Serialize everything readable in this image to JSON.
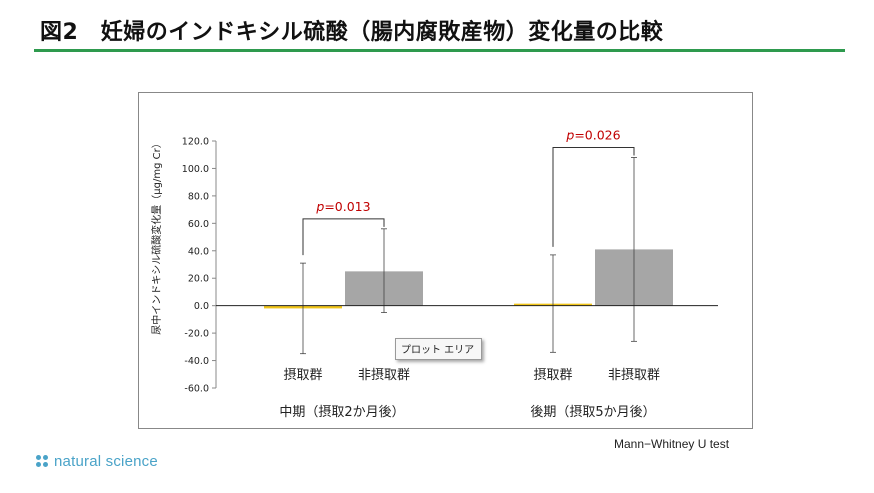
{
  "page": {
    "title": "図2　妊婦のインドキシル硫酸（腸内腐敗産物）変化量の比較",
    "footnote": "Mann−Whitney U test",
    "brand": "natural science",
    "tooltip": "プロット エリア",
    "colors": {
      "title_rule": "#2e9a4e",
      "brand": "#4aa3c8"
    }
  },
  "chart_data": {
    "type": "bar",
    "ylabel": "尿中インドキシル硫酸変化量（μg/mg Cr）",
    "ylim": [
      -60,
      120
    ],
    "yticks": [
      "120.0",
      "100.0",
      "80.0",
      "60.0",
      "40.0",
      "20.0",
      "0.0",
      "-20.0",
      "-40.0",
      "-60.0"
    ],
    "ytick_values": [
      120,
      100,
      80,
      60,
      40,
      20,
      0,
      -20,
      -40,
      -60
    ],
    "groups": [
      {
        "label": "中期（摂取2か月後）",
        "bars": [
          {
            "label": "摂取群",
            "value": -2,
            "error_low": -35,
            "error_high": 31,
            "color": "#f0c419"
          },
          {
            "label": "非摂取群",
            "value": 25,
            "error_low": -5,
            "error_high": 56,
            "color": "#a6a6a6"
          }
        ],
        "pvalue": {
          "prefix": "p",
          "text": "=0.013",
          "color": "#c00000"
        }
      },
      {
        "label": "後期（摂取5か月後）",
        "bars": [
          {
            "label": "摂取群",
            "value": 1,
            "error_low": -34,
            "error_high": 37,
            "color": "#f0c419"
          },
          {
            "label": "非摂取群",
            "value": 41,
            "error_low": -26,
            "error_high": 108,
            "color": "#a6a6a6"
          }
        ],
        "pvalue": {
          "prefix": "p",
          "text": "=0.026",
          "color": "#c00000"
        }
      }
    ],
    "grid": false,
    "legend": "none"
  }
}
